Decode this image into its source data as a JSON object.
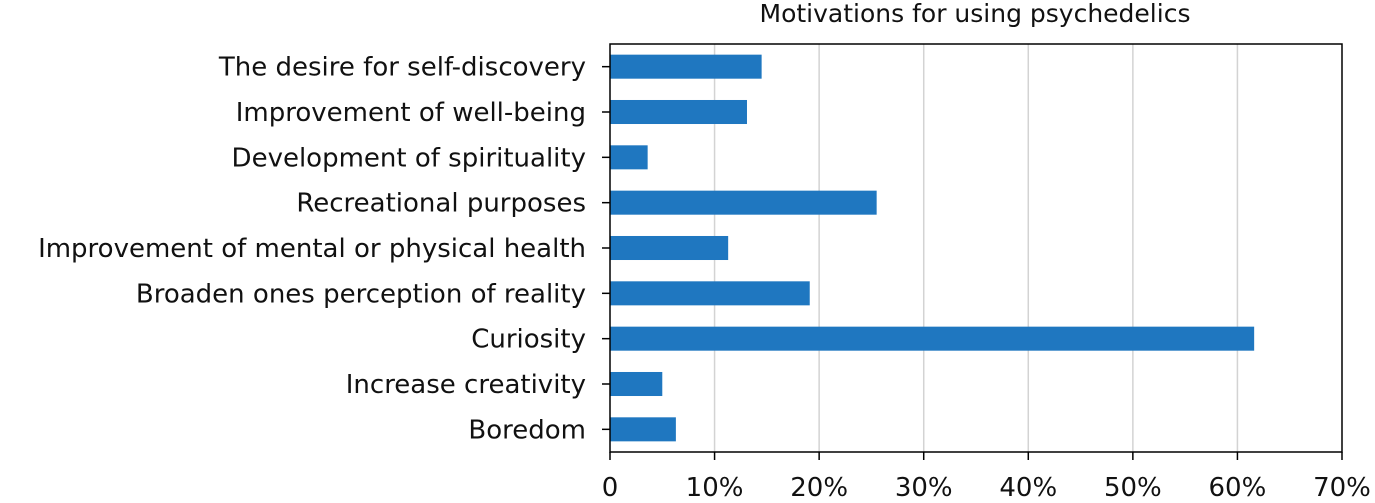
{
  "colors": {
    "bar": "#1f77c0",
    "grid": "#d3d3d3",
    "axis": "#000000",
    "text": "#111111"
  },
  "chart_data": {
    "type": "bar",
    "orientation": "horizontal",
    "title": "Motivations for using psychedelics",
    "xlabel": "",
    "ylabel": "",
    "categories": [
      "The desire for self-discovery",
      "Improvement of well-being",
      "Development of spirituality",
      "Recreational purposes",
      "Improvement of mental or physical health",
      "Broaden ones perception of reality",
      "Curiosity",
      "Increase creativity",
      "Boredom"
    ],
    "values": [
      14.5,
      13.1,
      3.6,
      25.5,
      11.3,
      19.1,
      61.6,
      5.0,
      6.3
    ],
    "value_unit": "percent",
    "xlim": [
      0,
      70
    ],
    "xticks": [
      0,
      10,
      20,
      30,
      40,
      50,
      60,
      70
    ],
    "xtick_labels": [
      "0",
      "10%",
      "20%",
      "30%",
      "40%",
      "50%",
      "60%",
      "70%"
    ],
    "grid": "vertical",
    "legend": "none"
  }
}
